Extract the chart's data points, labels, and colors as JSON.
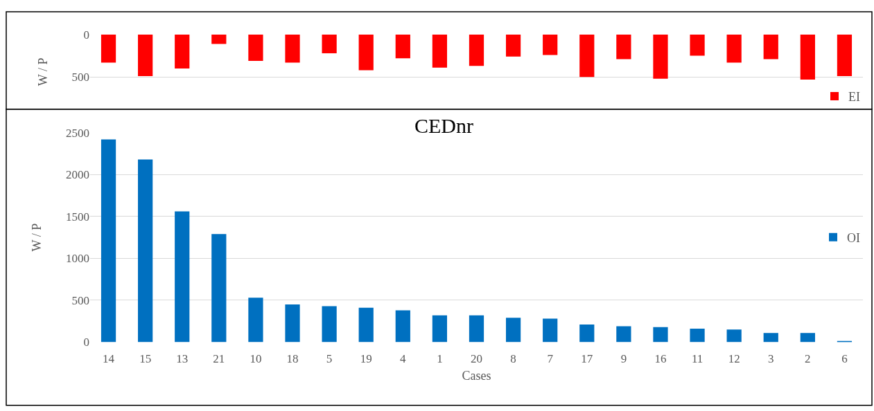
{
  "chart_data": [
    {
      "type": "bar",
      "categories": [
        null,
        null,
        null,
        null,
        null,
        null,
        null,
        null,
        null,
        null,
        null,
        null,
        null,
        null,
        null,
        null,
        null,
        null,
        null,
        null,
        null
      ],
      "ylabel": "W / P",
      "ylim": [
        880,
        0
      ],
      "yticks": [
        0,
        500
      ],
      "grid": "y",
      "legend": "bottom right",
      "tick_labels": "y",
      "series": [
        {
          "name": "EI",
          "color": "#ff0000",
          "values": [
            330,
            490,
            400,
            110,
            310,
            330,
            220,
            420,
            280,
            390,
            370,
            260,
            240,
            500,
            290,
            520,
            250,
            330,
            290,
            530,
            490
          ]
        }
      ]
    },
    {
      "type": "bar",
      "title": "CEDnr",
      "xlabel": "Cases",
      "ylabel": "W / P",
      "categories": [
        "14",
        "15",
        "13",
        "21",
        "10",
        "18",
        "5",
        "19",
        "4",
        "1",
        "20",
        "8",
        "7",
        "17",
        "9",
        "16",
        "11",
        "12",
        "3",
        "2",
        "6"
      ],
      "ylim": [
        0,
        2500
      ],
      "yticks": [
        0,
        500,
        1000,
        1500,
        2000,
        2500
      ],
      "grid": "y",
      "legend": "right",
      "series": [
        {
          "name": "OI",
          "color": "#0070c0",
          "values": [
            2420,
            2180,
            1560,
            1290,
            530,
            450,
            430,
            410,
            380,
            320,
            320,
            290,
            280,
            210,
            190,
            180,
            160,
            150,
            110,
            110,
            10
          ]
        }
      ]
    }
  ]
}
